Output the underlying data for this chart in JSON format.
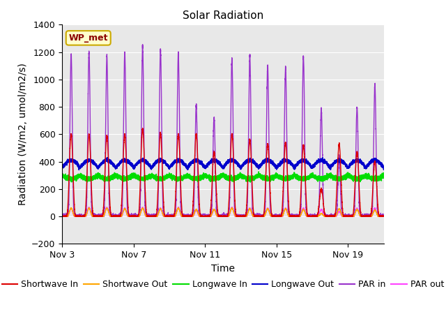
{
  "title": "Solar Radiation",
  "ylabel": "Radiation (W/m2, umol/m2/s)",
  "xlabel": "Time",
  "ylim": [
    -200,
    1400
  ],
  "yticks": [
    -200,
    0,
    200,
    400,
    600,
    800,
    1000,
    1200,
    1400
  ],
  "xtick_labels": [
    "Nov 3",
    "Nov 7",
    "Nov 11",
    "Nov 15",
    "Nov 19"
  ],
  "xtick_positions": [
    3,
    7,
    11,
    15,
    19
  ],
  "annotation_text": "WP_met",
  "background_color": "#e8e8e8",
  "figure_background": "#ffffff",
  "legend_entries": [
    {
      "label": "Shortwave In",
      "color": "#dd0000",
      "linestyle": "-"
    },
    {
      "label": "Shortwave Out",
      "color": "#ffa500",
      "linestyle": "-"
    },
    {
      "label": "Longwave In",
      "color": "#00dd00",
      "linestyle": "-"
    },
    {
      "label": "Longwave Out",
      "color": "#0000cc",
      "linestyle": "-"
    },
    {
      "label": "PAR in",
      "color": "#9933cc",
      "linestyle": "-"
    },
    {
      "label": "PAR out",
      "color": "#ff44ff",
      "linestyle": "-"
    }
  ],
  "start_day": 3,
  "num_days": 18,
  "sw_in_peaks": [
    600,
    600,
    590,
    600,
    640,
    610,
    600,
    600,
    470,
    600,
    560,
    530,
    540,
    520,
    200,
    530,
    470,
    400
  ],
  "sw_out_peaks": [
    60,
    60,
    60,
    55,
    60,
    55,
    60,
    50,
    50,
    60,
    55,
    55,
    55,
    50,
    20,
    55,
    50,
    45
  ],
  "lw_in_base": 300,
  "lw_out_base": 355,
  "par_in_peaks": [
    1180,
    1200,
    1170,
    1195,
    1240,
    1220,
    1190,
    810,
    720,
    1150,
    1175,
    1100,
    1085,
    1170,
    780,
    430,
    800,
    960
  ],
  "par_out_peaks": [
    60,
    65,
    65,
    60,
    65,
    60,
    65,
    45,
    50,
    65,
    60,
    60,
    60,
    60,
    50,
    35,
    60,
    60
  ],
  "title_fontsize": 11,
  "axis_fontsize": 10,
  "tick_fontsize": 9,
  "legend_fontsize": 9
}
